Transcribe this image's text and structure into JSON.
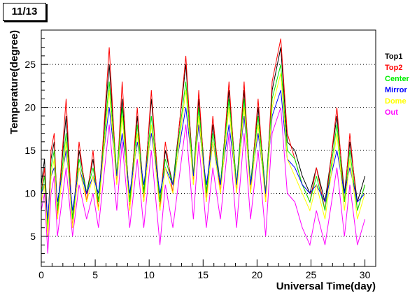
{
  "chart_data": {
    "type": "line",
    "title": "11/13",
    "xlabel": "Universal Time(day)",
    "ylabel": "Temperature(degree)",
    "xlim": [
      0,
      31
    ],
    "ylim": [
      1.5,
      29
    ],
    "x_ticks": [
      0,
      5,
      10,
      15,
      20,
      25,
      30
    ],
    "y_ticks": [
      5,
      10,
      15,
      20,
      25
    ],
    "grid": "horizontal dotted",
    "legend_position": "right",
    "series": [
      {
        "name": "Top1",
        "color": "#000000",
        "points": [
          [
            0,
            11
          ],
          [
            0.3,
            14
          ],
          [
            0.6,
            6
          ],
          [
            0.9,
            14
          ],
          [
            1.2,
            16
          ],
          [
            1.5,
            8
          ],
          [
            2.3,
            19
          ],
          [
            2.9,
            7
          ],
          [
            3.5,
            15
          ],
          [
            4.2,
            10
          ],
          [
            4.8,
            14
          ],
          [
            5.3,
            9
          ],
          [
            6.3,
            25
          ],
          [
            7,
            12
          ],
          [
            7.5,
            21
          ],
          [
            8.2,
            9
          ],
          [
            8.9,
            19
          ],
          [
            9.5,
            10
          ],
          [
            10.2,
            21
          ],
          [
            11,
            9
          ],
          [
            11.5,
            15
          ],
          [
            12.2,
            11
          ],
          [
            13.4,
            25
          ],
          [
            14.1,
            12
          ],
          [
            14.6,
            21
          ],
          [
            15.3,
            10
          ],
          [
            15.9,
            18
          ],
          [
            16.6,
            11
          ],
          [
            17.4,
            22
          ],
          [
            18.1,
            11
          ],
          [
            18.8,
            22
          ],
          [
            19.4,
            11
          ],
          [
            20.1,
            20
          ],
          [
            20.8,
            10
          ],
          [
            21.4,
            22
          ],
          [
            22.2,
            27
          ],
          [
            22.8,
            16
          ],
          [
            23.5,
            15
          ],
          [
            24.2,
            12
          ],
          [
            24.9,
            10
          ],
          [
            25.5,
            13
          ],
          [
            26.3,
            9
          ],
          [
            27.4,
            19
          ],
          [
            28.1,
            10
          ],
          [
            28.6,
            16
          ],
          [
            29.3,
            9
          ],
          [
            30,
            12
          ]
        ]
      },
      {
        "name": "Top2",
        "color": "#ff0000",
        "points": [
          [
            0,
            10
          ],
          [
            0.3,
            13
          ],
          [
            0.6,
            5
          ],
          [
            0.9,
            15
          ],
          [
            1.2,
            17
          ],
          [
            1.5,
            7
          ],
          [
            2.3,
            21
          ],
          [
            2.9,
            6
          ],
          [
            3.5,
            16
          ],
          [
            4.2,
            9
          ],
          [
            4.8,
            15
          ],
          [
            5.3,
            8
          ],
          [
            6.3,
            27
          ],
          [
            7,
            11
          ],
          [
            7.5,
            23
          ],
          [
            8.2,
            8
          ],
          [
            8.9,
            20
          ],
          [
            9.5,
            9
          ],
          [
            10.2,
            22
          ],
          [
            11,
            8
          ],
          [
            11.5,
            16
          ],
          [
            12.2,
            10
          ],
          [
            13.4,
            26
          ],
          [
            14.1,
            11
          ],
          [
            14.6,
            22
          ],
          [
            15.3,
            9
          ],
          [
            15.9,
            19
          ],
          [
            16.6,
            10
          ],
          [
            17.4,
            23
          ],
          [
            18.1,
            10
          ],
          [
            18.8,
            23
          ],
          [
            19.4,
            10
          ],
          [
            20.1,
            21
          ],
          [
            20.8,
            9
          ],
          [
            21.4,
            23
          ],
          [
            22.2,
            28
          ],
          [
            22.8,
            17
          ],
          [
            23.5,
            14
          ],
          [
            24.2,
            11
          ],
          [
            24.9,
            9
          ],
          [
            25.5,
            13
          ],
          [
            26.3,
            8
          ],
          [
            27.4,
            20
          ],
          [
            28.1,
            9
          ],
          [
            28.6,
            17
          ],
          [
            29.3,
            8
          ],
          [
            30,
            11
          ]
        ]
      },
      {
        "name": "Center",
        "color": "#00ee00",
        "points": [
          [
            0,
            10
          ],
          [
            0.3,
            12
          ],
          [
            0.6,
            6
          ],
          [
            0.9,
            13
          ],
          [
            1.2,
            15
          ],
          [
            1.5,
            8
          ],
          [
            2.3,
            17
          ],
          [
            2.9,
            7
          ],
          [
            3.5,
            14
          ],
          [
            4.2,
            10
          ],
          [
            4.8,
            13
          ],
          [
            5.3,
            9
          ],
          [
            6.3,
            23
          ],
          [
            7,
            12
          ],
          [
            7.5,
            20
          ],
          [
            8.2,
            9
          ],
          [
            8.9,
            18
          ],
          [
            9.5,
            10
          ],
          [
            10.2,
            19
          ],
          [
            11,
            9
          ],
          [
            11.5,
            14
          ],
          [
            12.2,
            11
          ],
          [
            13.4,
            23
          ],
          [
            14.1,
            12
          ],
          [
            14.6,
            20
          ],
          [
            15.3,
            10
          ],
          [
            15.9,
            17
          ],
          [
            16.6,
            11
          ],
          [
            17.4,
            21
          ],
          [
            18.1,
            11
          ],
          [
            18.8,
            21
          ],
          [
            19.4,
            11
          ],
          [
            20.1,
            19
          ],
          [
            20.8,
            10
          ],
          [
            21.4,
            21
          ],
          [
            22.2,
            25
          ],
          [
            22.8,
            15
          ],
          [
            23.5,
            14
          ],
          [
            24.2,
            11
          ],
          [
            24.9,
            9
          ],
          [
            25.5,
            12
          ],
          [
            26.3,
            8
          ],
          [
            27.4,
            18
          ],
          [
            28.1,
            9
          ],
          [
            28.6,
            15
          ],
          [
            29.3,
            8
          ],
          [
            30,
            11
          ]
        ]
      },
      {
        "name": "Mirror",
        "color": "#0000ff",
        "points": [
          [
            0,
            10
          ],
          [
            0.3,
            11
          ],
          [
            0.6,
            7
          ],
          [
            0.9,
            12
          ],
          [
            1.2,
            13
          ],
          [
            1.5,
            9
          ],
          [
            2.3,
            15
          ],
          [
            2.9,
            8
          ],
          [
            3.5,
            13
          ],
          [
            4.2,
            10
          ],
          [
            4.8,
            12
          ],
          [
            5.3,
            10
          ],
          [
            6.3,
            20
          ],
          [
            7,
            12
          ],
          [
            7.5,
            17
          ],
          [
            8.2,
            10
          ],
          [
            8.9,
            16
          ],
          [
            9.5,
            11
          ],
          [
            10.2,
            17
          ],
          [
            11,
            10
          ],
          [
            11.5,
            13
          ],
          [
            12.2,
            11
          ],
          [
            13.4,
            20
          ],
          [
            14.1,
            12
          ],
          [
            14.6,
            18
          ],
          [
            15.3,
            11
          ],
          [
            15.9,
            16
          ],
          [
            16.6,
            11
          ],
          [
            17.4,
            18
          ],
          [
            18.1,
            11
          ],
          [
            18.8,
            19
          ],
          [
            19.4,
            11
          ],
          [
            20.1,
            17
          ],
          [
            20.8,
            10
          ],
          [
            21.4,
            19
          ],
          [
            22.2,
            22
          ],
          [
            22.8,
            14
          ],
          [
            23.5,
            13
          ],
          [
            24.2,
            11
          ],
          [
            24.9,
            10
          ],
          [
            25.5,
            11
          ],
          [
            26.3,
            9
          ],
          [
            27.4,
            15
          ],
          [
            28.1,
            10
          ],
          [
            28.6,
            13
          ],
          [
            29.3,
            9
          ],
          [
            30,
            10
          ]
        ]
      },
      {
        "name": "Dome",
        "color": "#ffff00",
        "points": [
          [
            0,
            9
          ],
          [
            0.3,
            11
          ],
          [
            0.6,
            5
          ],
          [
            0.9,
            12
          ],
          [
            1.2,
            14
          ],
          [
            1.5,
            7
          ],
          [
            2.3,
            16
          ],
          [
            2.9,
            6
          ],
          [
            3.5,
            13
          ],
          [
            4.2,
            9
          ],
          [
            4.8,
            12
          ],
          [
            5.3,
            8
          ],
          [
            6.3,
            22
          ],
          [
            7,
            11
          ],
          [
            7.5,
            19
          ],
          [
            8.2,
            8
          ],
          [
            8.9,
            17
          ],
          [
            9.5,
            9
          ],
          [
            10.2,
            18
          ],
          [
            11,
            8
          ],
          [
            11.5,
            13
          ],
          [
            12.2,
            10
          ],
          [
            13.4,
            22
          ],
          [
            14.1,
            11
          ],
          [
            14.6,
            19
          ],
          [
            15.3,
            9
          ],
          [
            15.9,
            16
          ],
          [
            16.6,
            10
          ],
          [
            17.4,
            20
          ],
          [
            18.1,
            10
          ],
          [
            18.8,
            20
          ],
          [
            19.4,
            10
          ],
          [
            20.1,
            18
          ],
          [
            20.8,
            9
          ],
          [
            21.4,
            20
          ],
          [
            22.2,
            24
          ],
          [
            22.8,
            14
          ],
          [
            23.5,
            12
          ],
          [
            24.2,
            10
          ],
          [
            24.9,
            8
          ],
          [
            25.5,
            11
          ],
          [
            26.3,
            7
          ],
          [
            27.4,
            17
          ],
          [
            28.1,
            8
          ],
          [
            28.6,
            14
          ],
          [
            29.3,
            7
          ],
          [
            30,
            10
          ]
        ]
      },
      {
        "name": "Out",
        "color": "#ff00ff",
        "points": [
          [
            0,
            8
          ],
          [
            0.3,
            10
          ],
          [
            0.6,
            3
          ],
          [
            0.9,
            10
          ],
          [
            1.2,
            12
          ],
          [
            1.5,
            5
          ],
          [
            2.3,
            13
          ],
          [
            2.9,
            5
          ],
          [
            3.5,
            11
          ],
          [
            4.2,
            7
          ],
          [
            4.8,
            10
          ],
          [
            5.3,
            6
          ],
          [
            6.3,
            18
          ],
          [
            7,
            8
          ],
          [
            7.5,
            16
          ],
          [
            8.2,
            6
          ],
          [
            8.9,
            14
          ],
          [
            9.5,
            6
          ],
          [
            10.2,
            15
          ],
          [
            11,
            4
          ],
          [
            11.5,
            11
          ],
          [
            12.2,
            6
          ],
          [
            13.4,
            18
          ],
          [
            14.1,
            7
          ],
          [
            14.6,
            16
          ],
          [
            15.3,
            6
          ],
          [
            15.9,
            13
          ],
          [
            16.6,
            7
          ],
          [
            17.4,
            17
          ],
          [
            18.1,
            6
          ],
          [
            18.8,
            17
          ],
          [
            19.4,
            7
          ],
          [
            20.1,
            15
          ],
          [
            20.8,
            5
          ],
          [
            21.4,
            17
          ],
          [
            22.2,
            20
          ],
          [
            22.8,
            10
          ],
          [
            23.5,
            9
          ],
          [
            24.2,
            6
          ],
          [
            24.9,
            4
          ],
          [
            25.5,
            8
          ],
          [
            26.3,
            4
          ],
          [
            27.4,
            13
          ],
          [
            28.1,
            5
          ],
          [
            28.6,
            11
          ],
          [
            29.3,
            4
          ],
          [
            30,
            7
          ]
        ]
      }
    ]
  }
}
